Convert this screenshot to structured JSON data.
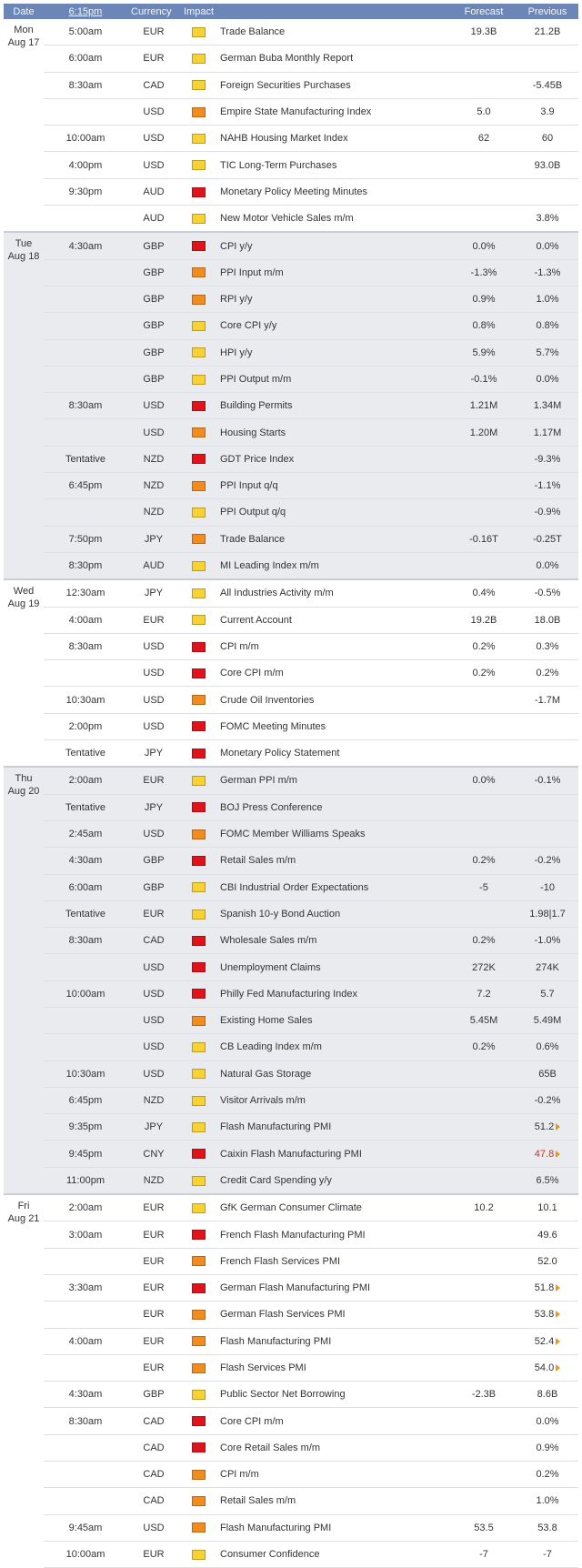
{
  "header": {
    "date": "Date",
    "time": "6:15pm",
    "currency": "Currency",
    "impact": "Impact",
    "event": "",
    "forecast": "Forecast",
    "previous": "Previous"
  },
  "impact_colors": {
    "high": "#e0131b",
    "medium": "#f28c1e",
    "low": "#f7d232"
  },
  "days": [
    {
      "day": "Mon",
      "date": "Aug 17",
      "events": [
        {
          "time": "5:00am",
          "currency": "EUR",
          "impact": "low",
          "event": "Trade Balance",
          "forecast": "19.3B",
          "previous": "21.2B"
        },
        {
          "time": "6:00am",
          "currency": "EUR",
          "impact": "low",
          "event": "German Buba Monthly Report",
          "forecast": "",
          "previous": ""
        },
        {
          "time": "8:30am",
          "currency": "CAD",
          "impact": "low",
          "event": "Foreign Securities Purchases",
          "forecast": "",
          "previous": "-5.45B"
        },
        {
          "time": "",
          "currency": "USD",
          "impact": "medium",
          "event": "Empire State Manufacturing Index",
          "forecast": "5.0",
          "previous": "3.9"
        },
        {
          "time": "10:00am",
          "currency": "USD",
          "impact": "low",
          "event": "NAHB Housing Market Index",
          "forecast": "62",
          "previous": "60"
        },
        {
          "time": "4:00pm",
          "currency": "USD",
          "impact": "low",
          "event": "TIC Long-Term Purchases",
          "forecast": "",
          "previous": "93.0B"
        },
        {
          "time": "9:30pm",
          "currency": "AUD",
          "impact": "high",
          "event": "Monetary Policy Meeting Minutes",
          "forecast": "",
          "previous": ""
        },
        {
          "time": "",
          "currency": "AUD",
          "impact": "low",
          "event": "New Motor Vehicle Sales m/m",
          "forecast": "",
          "previous": "3.8%"
        }
      ]
    },
    {
      "day": "Tue",
      "date": "Aug 18",
      "events": [
        {
          "time": "4:30am",
          "currency": "GBP",
          "impact": "high",
          "event": "CPI y/y",
          "forecast": "0.0%",
          "previous": "0.0%"
        },
        {
          "time": "",
          "currency": "GBP",
          "impact": "medium",
          "event": "PPI Input m/m",
          "forecast": "-1.3%",
          "previous": "-1.3%"
        },
        {
          "time": "",
          "currency": "GBP",
          "impact": "medium",
          "event": "RPI y/y",
          "forecast": "0.9%",
          "previous": "1.0%"
        },
        {
          "time": "",
          "currency": "GBP",
          "impact": "low",
          "event": "Core CPI y/y",
          "forecast": "0.8%",
          "previous": "0.8%"
        },
        {
          "time": "",
          "currency": "GBP",
          "impact": "low",
          "event": "HPI y/y",
          "forecast": "5.9%",
          "previous": "5.7%"
        },
        {
          "time": "",
          "currency": "GBP",
          "impact": "low",
          "event": "PPI Output m/m",
          "forecast": "-0.1%",
          "previous": "0.0%"
        },
        {
          "time": "8:30am",
          "currency": "USD",
          "impact": "high",
          "event": "Building Permits",
          "forecast": "1.21M",
          "previous": "1.34M"
        },
        {
          "time": "",
          "currency": "USD",
          "impact": "medium",
          "event": "Housing Starts",
          "forecast": "1.20M",
          "previous": "1.17M"
        },
        {
          "time": "Tentative",
          "currency": "NZD",
          "impact": "high",
          "event": "GDT Price Index",
          "forecast": "",
          "previous": "-9.3%"
        },
        {
          "time": "6:45pm",
          "currency": "NZD",
          "impact": "medium",
          "event": "PPI Input q/q",
          "forecast": "",
          "previous": "-1.1%"
        },
        {
          "time": "",
          "currency": "NZD",
          "impact": "low",
          "event": "PPI Output q/q",
          "forecast": "",
          "previous": "-0.9%"
        },
        {
          "time": "7:50pm",
          "currency": "JPY",
          "impact": "medium",
          "event": "Trade Balance",
          "forecast": "-0.16T",
          "previous": "-0.25T"
        },
        {
          "time": "8:30pm",
          "currency": "AUD",
          "impact": "low",
          "event": "MI Leading Index m/m",
          "forecast": "",
          "previous": "0.0%"
        }
      ]
    },
    {
      "day": "Wed",
      "date": "Aug 19",
      "events": [
        {
          "time": "12:30am",
          "currency": "JPY",
          "impact": "low",
          "event": "All Industries Activity m/m",
          "forecast": "0.4%",
          "previous": "-0.5%"
        },
        {
          "time": "4:00am",
          "currency": "EUR",
          "impact": "low",
          "event": "Current Account",
          "forecast": "19.2B",
          "previous": "18.0B"
        },
        {
          "time": "8:30am",
          "currency": "USD",
          "impact": "high",
          "event": "CPI m/m",
          "forecast": "0.2%",
          "previous": "0.3%"
        },
        {
          "time": "",
          "currency": "USD",
          "impact": "high",
          "event": "Core CPI m/m",
          "forecast": "0.2%",
          "previous": "0.2%"
        },
        {
          "time": "10:30am",
          "currency": "USD",
          "impact": "medium",
          "event": "Crude Oil Inventories",
          "forecast": "",
          "previous": "-1.7M"
        },
        {
          "time": "2:00pm",
          "currency": "USD",
          "impact": "high",
          "event": "FOMC Meeting Minutes",
          "forecast": "",
          "previous": ""
        },
        {
          "time": "Tentative",
          "currency": "JPY",
          "impact": "high",
          "event": "Monetary Policy Statement",
          "forecast": "",
          "previous": ""
        }
      ]
    },
    {
      "day": "Thu",
      "date": "Aug 20",
      "events": [
        {
          "time": "2:00am",
          "currency": "EUR",
          "impact": "low",
          "event": "German PPI m/m",
          "forecast": "0.0%",
          "previous": "-0.1%"
        },
        {
          "time": "Tentative",
          "currency": "JPY",
          "impact": "high",
          "event": "BOJ Press Conference",
          "forecast": "",
          "previous": ""
        },
        {
          "time": "2:45am",
          "currency": "USD",
          "impact": "medium",
          "event": "FOMC Member Williams Speaks",
          "forecast": "",
          "previous": ""
        },
        {
          "time": "4:30am",
          "currency": "GBP",
          "impact": "high",
          "event": "Retail Sales m/m",
          "forecast": "0.2%",
          "previous": "-0.2%"
        },
        {
          "time": "6:00am",
          "currency": "GBP",
          "impact": "low",
          "event": "CBI Industrial Order Expectations",
          "forecast": "-5",
          "previous": "-10"
        },
        {
          "time": "Tentative",
          "currency": "EUR",
          "impact": "low",
          "event": "Spanish 10-y Bond Auction",
          "forecast": "",
          "previous": "1.98|1.7"
        },
        {
          "time": "8:30am",
          "currency": "CAD",
          "impact": "high",
          "event": "Wholesale Sales m/m",
          "forecast": "0.2%",
          "previous": "-1.0%"
        },
        {
          "time": "",
          "currency": "USD",
          "impact": "high",
          "event": "Unemployment Claims",
          "forecast": "272K",
          "previous": "274K"
        },
        {
          "time": "10:00am",
          "currency": "USD",
          "impact": "high",
          "event": "Philly Fed Manufacturing Index",
          "forecast": "7.2",
          "previous": "5.7"
        },
        {
          "time": "",
          "currency": "USD",
          "impact": "medium",
          "event": "Existing Home Sales",
          "forecast": "5.45M",
          "previous": "5.49M"
        },
        {
          "time": "",
          "currency": "USD",
          "impact": "low",
          "event": "CB Leading Index m/m",
          "forecast": "0.2%",
          "previous": "0.6%"
        },
        {
          "time": "10:30am",
          "currency": "USD",
          "impact": "low",
          "event": "Natural Gas Storage",
          "forecast": "",
          "previous": "65B"
        },
        {
          "time": "6:45pm",
          "currency": "NZD",
          "impact": "low",
          "event": "Visitor Arrivals m/m",
          "forecast": "",
          "previous": "-0.2%"
        },
        {
          "time": "9:35pm",
          "currency": "JPY",
          "impact": "low",
          "event": "Flash Manufacturing PMI",
          "forecast": "",
          "previous": "51.2",
          "flag": true
        },
        {
          "time": "9:45pm",
          "currency": "CNY",
          "impact": "high",
          "event": "Caixin Flash Manufacturing PMI",
          "forecast": "",
          "previous": "47.8",
          "flag": true,
          "previous_red": true
        },
        {
          "time": "11:00pm",
          "currency": "NZD",
          "impact": "low",
          "event": "Credit Card Spending y/y",
          "forecast": "",
          "previous": "6.5%"
        }
      ]
    },
    {
      "day": "Fri",
      "date": "Aug 21",
      "events": [
        {
          "time": "2:00am",
          "currency": "EUR",
          "impact": "low",
          "event": "GfK German Consumer Climate",
          "forecast": "10.2",
          "previous": "10.1"
        },
        {
          "time": "3:00am",
          "currency": "EUR",
          "impact": "high",
          "event": "French Flash Manufacturing PMI",
          "forecast": "",
          "previous": "49.6"
        },
        {
          "time": "",
          "currency": "EUR",
          "impact": "medium",
          "event": "French Flash Services PMI",
          "forecast": "",
          "previous": "52.0"
        },
        {
          "time": "3:30am",
          "currency": "EUR",
          "impact": "high",
          "event": "German Flash Manufacturing PMI",
          "forecast": "",
          "previous": "51.8",
          "flag": true
        },
        {
          "time": "",
          "currency": "EUR",
          "impact": "medium",
          "event": "German Flash Services PMI",
          "forecast": "",
          "previous": "53.8",
          "flag": true
        },
        {
          "time": "4:00am",
          "currency": "EUR",
          "impact": "medium",
          "event": "Flash Manufacturing PMI",
          "forecast": "",
          "previous": "52.4",
          "flag": true
        },
        {
          "time": "",
          "currency": "EUR",
          "impact": "medium",
          "event": "Flash Services PMI",
          "forecast": "",
          "previous": "54.0",
          "flag": true
        },
        {
          "time": "4:30am",
          "currency": "GBP",
          "impact": "low",
          "event": "Public Sector Net Borrowing",
          "forecast": "-2.3B",
          "previous": "8.6B"
        },
        {
          "time": "8:30am",
          "currency": "CAD",
          "impact": "high",
          "event": "Core CPI m/m",
          "forecast": "",
          "previous": "0.0%"
        },
        {
          "time": "",
          "currency": "CAD",
          "impact": "high",
          "event": "Core Retail Sales m/m",
          "forecast": "",
          "previous": "0.9%"
        },
        {
          "time": "",
          "currency": "CAD",
          "impact": "medium",
          "event": "CPI m/m",
          "forecast": "",
          "previous": "0.2%"
        },
        {
          "time": "",
          "currency": "CAD",
          "impact": "medium",
          "event": "Retail Sales m/m",
          "forecast": "",
          "previous": "1.0%"
        },
        {
          "time": "9:45am",
          "currency": "USD",
          "impact": "medium",
          "event": "Flash Manufacturing PMI",
          "forecast": "53.5",
          "previous": "53.8"
        },
        {
          "time": "10:00am",
          "currency": "EUR",
          "impact": "low",
          "event": "Consumer Confidence",
          "forecast": "-7",
          "previous": "-7"
        }
      ]
    }
  ]
}
